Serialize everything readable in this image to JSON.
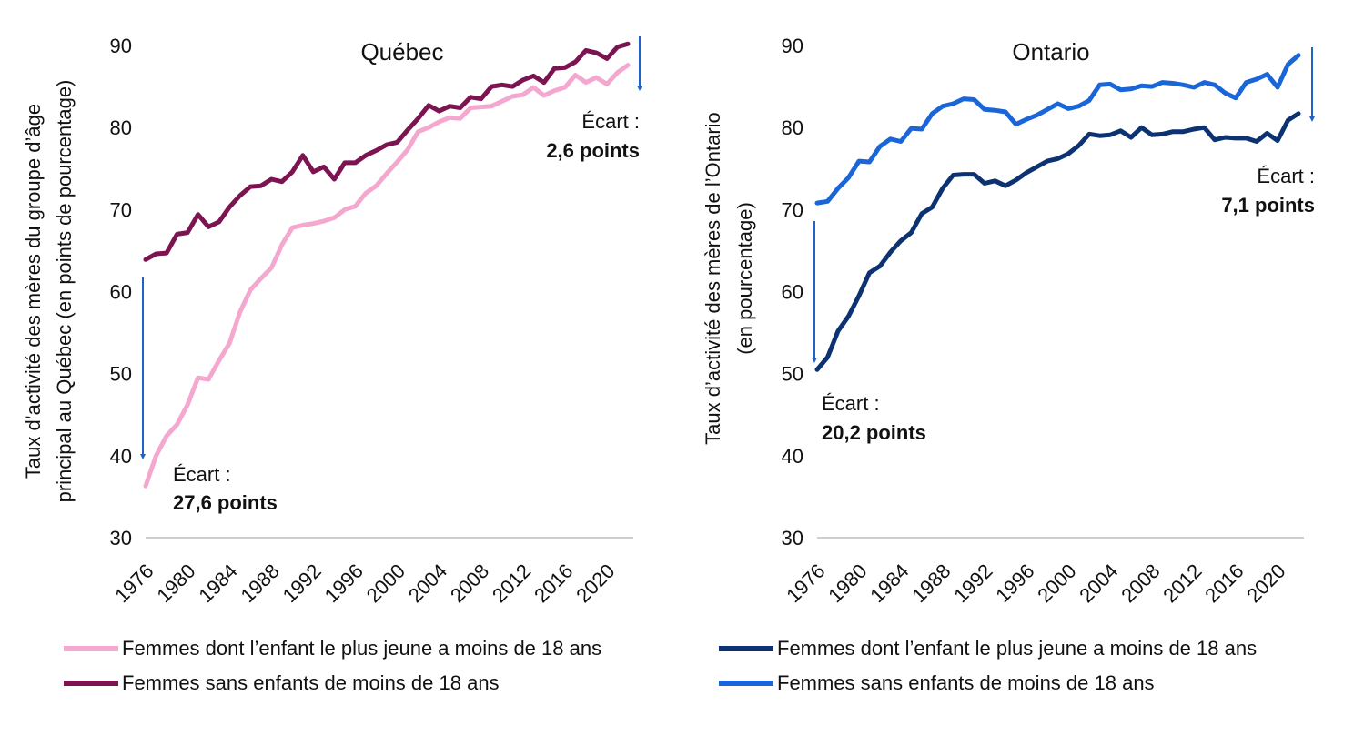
{
  "chart_data": [
    {
      "type": "line",
      "title": "Québec",
      "ylabel": [
        "Taux d’activité des mères du groupe d’âge",
        "principal au Québec (en points de pourcentage)"
      ],
      "xlabel": "",
      "ylim": [
        30,
        90
      ],
      "yticks": [
        30,
        40,
        50,
        60,
        70,
        80,
        90
      ],
      "xlim": [
        1976,
        2022
      ],
      "xticks": [
        1976,
        1980,
        1984,
        1988,
        1992,
        1996,
        2000,
        2004,
        2008,
        2012,
        2016,
        2020
      ],
      "grid": false,
      "x": [
        1976,
        1977,
        1978,
        1979,
        1980,
        1981,
        1982,
        1983,
        1984,
        1985,
        1986,
        1987,
        1988,
        1989,
        1990,
        1991,
        1992,
        1993,
        1994,
        1995,
        1996,
        1997,
        1998,
        1999,
        2000,
        2001,
        2002,
        2003,
        2004,
        2005,
        2006,
        2007,
        2008,
        2009,
        2010,
        2011,
        2012,
        2013,
        2014,
        2015,
        2016,
        2017,
        2018,
        2019,
        2020,
        2021,
        2022
      ],
      "series": [
        {
          "name": "Femmes dont l’enfant le plus jeune a moins de 18 ans",
          "color": "#f4a7cf",
          "values": [
            36.3,
            40.0,
            42.4,
            43.8,
            46.2,
            49.5,
            49.3,
            51.6,
            53.7,
            57.5,
            60.2,
            61.6,
            62.9,
            65.7,
            67.8,
            68.1,
            68.3,
            68.6,
            69.0,
            70.0,
            70.4,
            72.0,
            72.9,
            74.4,
            75.8,
            77.3,
            79.5,
            80.0,
            80.7,
            81.2,
            81.1,
            82.4,
            82.5,
            82.6,
            83.2,
            83.8,
            84.0,
            84.9,
            83.9,
            84.5,
            84.9,
            86.4,
            85.5,
            86.1,
            85.3,
            86.7,
            87.6
          ]
        },
        {
          "name": "Femmes sans enfants de moins de 18 ans",
          "color": "#7b1450",
          "values": [
            63.9,
            64.6,
            64.7,
            67.0,
            67.2,
            69.4,
            67.9,
            68.5,
            70.3,
            71.7,
            72.8,
            72.9,
            73.7,
            73.4,
            74.6,
            76.6,
            74.6,
            75.2,
            73.7,
            75.7,
            75.7,
            76.6,
            77.2,
            77.9,
            78.2,
            79.7,
            81.1,
            82.7,
            82.0,
            82.6,
            82.4,
            83.7,
            83.5,
            85.0,
            85.2,
            85.0,
            85.8,
            86.3,
            85.5,
            87.2,
            87.3,
            88.0,
            89.4,
            89.1,
            88.4,
            89.8,
            90.2
          ]
        }
      ],
      "annotations": [
        {
          "label": "Écart :",
          "value": "27,6 points"
        },
        {
          "label": "Écart :",
          "value": "2,6 points"
        }
      ]
    },
    {
      "type": "line",
      "title": "Ontario",
      "ylabel": [
        "Taux d’activité des mères de l’Ontario",
        "(en pourcentage)"
      ],
      "xlabel": "",
      "ylim": [
        30,
        90
      ],
      "yticks": [
        30,
        40,
        50,
        60,
        70,
        80,
        90
      ],
      "xlim": [
        1976,
        2022
      ],
      "xticks": [
        1976,
        1980,
        1984,
        1988,
        1992,
        1996,
        2000,
        2004,
        2008,
        2012,
        2016,
        2020
      ],
      "grid": false,
      "x": [
        1976,
        1977,
        1978,
        1979,
        1980,
        1981,
        1982,
        1983,
        1984,
        1985,
        1986,
        1987,
        1988,
        1989,
        1990,
        1991,
        1992,
        1993,
        1994,
        1995,
        1996,
        1997,
        1998,
        1999,
        2000,
        2001,
        2002,
        2003,
        2004,
        2005,
        2006,
        2007,
        2008,
        2009,
        2010,
        2011,
        2012,
        2013,
        2014,
        2015,
        2016,
        2017,
        2018,
        2019,
        2020,
        2021,
        2022
      ],
      "series": [
        {
          "name": "Femmes dont l’enfant le plus jeune a moins de 18 ans",
          "color": "#0d3272",
          "values": [
            50.5,
            52.0,
            55.2,
            57.0,
            59.5,
            62.3,
            63.1,
            64.8,
            66.2,
            67.2,
            69.5,
            70.3,
            72.6,
            74.2,
            74.3,
            74.3,
            73.2,
            73.5,
            72.9,
            73.6,
            74.5,
            75.2,
            75.9,
            76.2,
            76.8,
            77.8,
            79.2,
            79.0,
            79.1,
            79.6,
            78.8,
            80.0,
            79.1,
            79.2,
            79.5,
            79.5,
            79.8,
            80.0,
            78.5,
            78.8,
            78.7,
            78.7,
            78.3,
            79.3,
            78.4,
            80.9,
            81.7
          ]
        },
        {
          "name": "Femmes sans enfants de moins de 18 ans",
          "color": "#1a66d9",
          "values": [
            70.8,
            71.0,
            72.6,
            73.9,
            75.9,
            75.8,
            77.7,
            78.6,
            78.3,
            79.9,
            79.8,
            81.7,
            82.6,
            82.9,
            83.5,
            83.4,
            82.2,
            82.1,
            81.9,
            80.4,
            81.0,
            81.5,
            82.2,
            82.9,
            82.3,
            82.6,
            83.3,
            85.2,
            85.3,
            84.6,
            84.7,
            85.1,
            85.0,
            85.5,
            85.4,
            85.2,
            84.9,
            85.5,
            85.2,
            84.2,
            83.6,
            85.5,
            85.9,
            86.5,
            84.9,
            87.7,
            88.8
          ]
        }
      ],
      "annotations": [
        {
          "label": "Écart :",
          "value": "20,2 points"
        },
        {
          "label": "Écart :",
          "value": "7,1 points"
        }
      ]
    }
  ],
  "colors": {
    "arrow": "#1f62c9",
    "axis": "#bfbfbf",
    "text": "#111111"
  }
}
